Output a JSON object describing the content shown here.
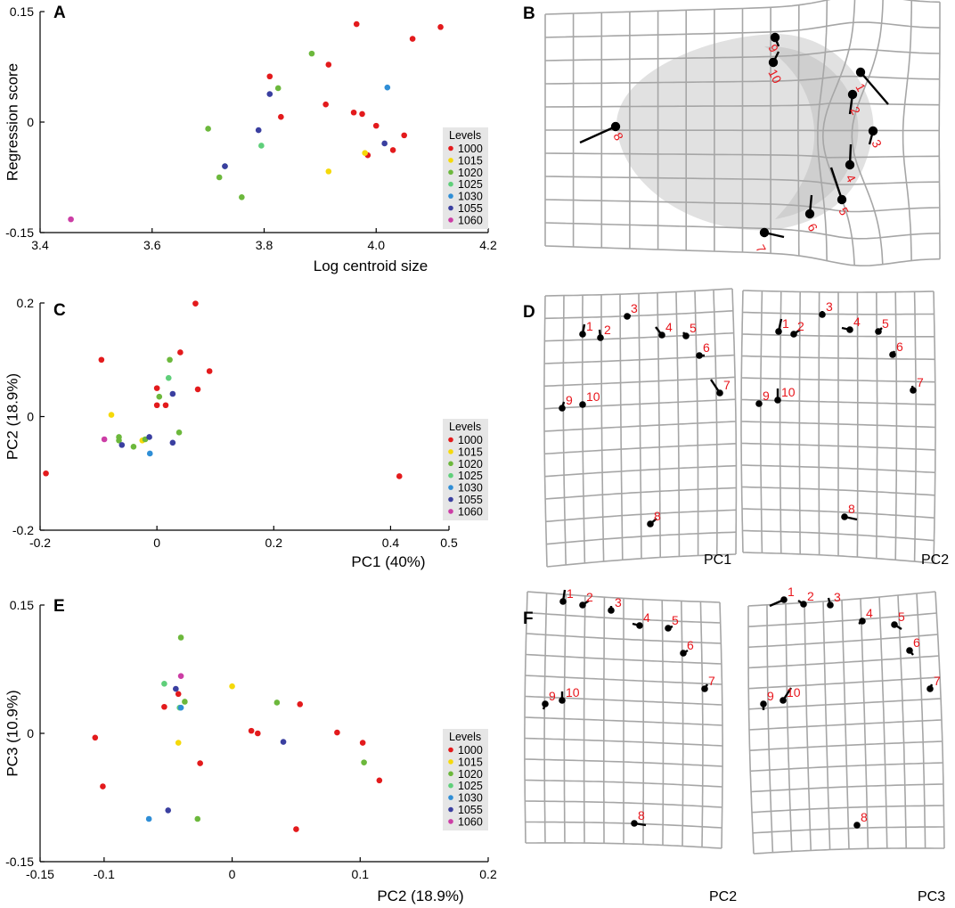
{
  "colors": {
    "1000": "#e31a1c",
    "1015": "#f5d90a",
    "1020": "#6cb83c",
    "1025": "#5fcf7a",
    "1030": "#2f8ed6",
    "1055": "#3a3fa0",
    "1060": "#cc3da5"
  },
  "legend": {
    "title": "Levels",
    "levels": [
      "1000",
      "1015",
      "1020",
      "1025",
      "1030",
      "1055",
      "1060"
    ]
  },
  "panel_labels": {
    "A": "A",
    "B": "B",
    "C": "C",
    "D": "D",
    "E": "E",
    "F": "F"
  },
  "chart_data": [
    {
      "id": "A",
      "type": "scatter",
      "xlabel": "Log centroid size",
      "ylabel": "Regression score",
      "xlim": [
        3.4,
        4.2
      ],
      "ylim": [
        -0.15,
        0.15
      ],
      "xticks": [
        {
          "v": 3.4,
          "t": "3.4"
        },
        {
          "v": 3.6,
          "t": "3.6"
        },
        {
          "v": 3.8,
          "t": "3.8"
        },
        {
          "v": 4.0,
          "t": "4.0"
        },
        {
          "v": 4.2,
          "t": "4.2"
        }
      ],
      "yticks": [
        {
          "v": 0.15,
          "t": "0.15"
        },
        {
          "v": 0,
          "t": "0"
        },
        {
          "v": -0.15,
          "t": "-0.15"
        }
      ],
      "points": [
        [
          3.965,
          0.133,
          "1000"
        ],
        [
          4.115,
          0.129,
          "1000"
        ],
        [
          4.065,
          0.113,
          "1000"
        ],
        [
          3.915,
          0.078,
          "1000"
        ],
        [
          3.81,
          0.062,
          "1000"
        ],
        [
          3.91,
          0.024,
          "1000"
        ],
        [
          3.96,
          0.013,
          "1000"
        ],
        [
          3.83,
          0.007,
          "1000"
        ],
        [
          3.975,
          0.011,
          "1000"
        ],
        [
          4.0,
          -0.005,
          "1000"
        ],
        [
          4.05,
          -0.018,
          "1000"
        ],
        [
          4.03,
          -0.038,
          "1000"
        ],
        [
          3.985,
          -0.045,
          "1000"
        ],
        [
          3.915,
          -0.067,
          "1015"
        ],
        [
          3.98,
          -0.042,
          "1015"
        ],
        [
          3.885,
          0.093,
          "1020"
        ],
        [
          3.825,
          0.046,
          "1020"
        ],
        [
          3.7,
          -0.009,
          "1020"
        ],
        [
          3.72,
          -0.075,
          "1020"
        ],
        [
          3.76,
          -0.102,
          "1020"
        ],
        [
          3.795,
          -0.032,
          "1025"
        ],
        [
          3.73,
          -0.06,
          "1025"
        ],
        [
          4.02,
          0.047,
          "1030"
        ],
        [
          3.81,
          0.038,
          "1055"
        ],
        [
          3.79,
          -0.011,
          "1055"
        ],
        [
          3.73,
          -0.06,
          "1055"
        ],
        [
          4.015,
          -0.029,
          "1055"
        ],
        [
          3.455,
          -0.132,
          "1060"
        ]
      ]
    },
    {
      "id": "C",
      "type": "scatter",
      "xlabel": "PC1 (40%)",
      "ylabel": "PC2 (18.9%)",
      "xlim": [
        -0.2,
        0.5
      ],
      "ylim": [
        -0.2,
        0.2
      ],
      "xticks": [
        {
          "v": -0.2,
          "t": "-0.2"
        },
        {
          "v": 0,
          "t": "0"
        },
        {
          "v": 0.2,
          "t": "0.2"
        },
        {
          "v": 0.4,
          "t": "0.4"
        },
        {
          "v": 0.5,
          "t": "0.5"
        }
      ],
      "yticks": [
        {
          "v": 0.2,
          "t": "0.2"
        },
        {
          "v": 0,
          "t": "0"
        },
        {
          "v": -0.2,
          "t": "-0.2"
        }
      ],
      "points": [
        [
          0.066,
          0.199,
          "1000"
        ],
        [
          -0.095,
          0.1,
          "1000"
        ],
        [
          0.04,
          0.113,
          "1000"
        ],
        [
          0.09,
          0.08,
          "1000"
        ],
        [
          0.07,
          0.048,
          "1000"
        ],
        [
          0.0,
          0.05,
          "1000"
        ],
        [
          0.015,
          0.02,
          "1000"
        ],
        [
          0.0,
          0.02,
          "1000"
        ],
        [
          -0.19,
          -0.1,
          "1000"
        ],
        [
          0.415,
          -0.105,
          "1000"
        ],
        [
          -0.078,
          0.003,
          "1015"
        ],
        [
          -0.025,
          -0.042,
          "1015"
        ],
        [
          0.022,
          0.1,
          "1020"
        ],
        [
          0.004,
          0.035,
          "1020"
        ],
        [
          -0.065,
          -0.036,
          "1020"
        ],
        [
          -0.04,
          -0.053,
          "1020"
        ],
        [
          -0.02,
          -0.04,
          "1020"
        ],
        [
          0.038,
          -0.028,
          "1020"
        ],
        [
          -0.065,
          -0.042,
          "1020"
        ],
        [
          0.02,
          0.068,
          "1025"
        ],
        [
          -0.012,
          -0.065,
          "1030"
        ],
        [
          -0.013,
          -0.036,
          "1055"
        ],
        [
          0.027,
          0.04,
          "1055"
        ],
        [
          0.027,
          -0.046,
          "1055"
        ],
        [
          -0.06,
          -0.05,
          "1055"
        ],
        [
          -0.09,
          -0.04,
          "1060"
        ]
      ]
    },
    {
      "id": "E",
      "type": "scatter",
      "xlabel": "PC2 (18.9%)",
      "ylabel": "PC3 (10.9%)",
      "xlim": [
        -0.15,
        0.2
      ],
      "ylim": [
        -0.15,
        0.15
      ],
      "xticks": [
        {
          "v": -0.15,
          "t": "-0.15"
        },
        {
          "v": -0.1,
          "t": "-0.1"
        },
        {
          "v": 0,
          "t": "0"
        },
        {
          "v": 0.1,
          "t": "0.1"
        },
        {
          "v": 0.2,
          "t": "0.2"
        }
      ],
      "yticks": [
        {
          "v": 0.15,
          "t": "0.15"
        },
        {
          "v": 0,
          "t": "0"
        },
        {
          "v": -0.15,
          "t": "-0.15"
        }
      ],
      "points": [
        [
          -0.107,
          -0.005,
          "1000"
        ],
        [
          -0.101,
          -0.062,
          "1000"
        ],
        [
          -0.053,
          0.031,
          "1000"
        ],
        [
          -0.042,
          0.046,
          "1000"
        ],
        [
          -0.025,
          -0.035,
          "1000"
        ],
        [
          0.015,
          0.003,
          "1000"
        ],
        [
          0.02,
          0.0,
          "1000"
        ],
        [
          0.053,
          0.034,
          "1000"
        ],
        [
          0.082,
          0.001,
          "1000"
        ],
        [
          0.102,
          -0.011,
          "1000"
        ],
        [
          0.115,
          -0.055,
          "1000"
        ],
        [
          0.05,
          -0.112,
          "1000"
        ],
        [
          0.0,
          0.055,
          "1015"
        ],
        [
          -0.042,
          -0.011,
          "1015"
        ],
        [
          -0.04,
          0.112,
          "1020"
        ],
        [
          -0.037,
          0.037,
          "1020"
        ],
        [
          0.035,
          0.036,
          "1020"
        ],
        [
          0.103,
          -0.034,
          "1020"
        ],
        [
          -0.027,
          -0.1,
          "1020"
        ],
        [
          -0.053,
          0.058,
          "1025"
        ],
        [
          -0.041,
          0.03,
          "1025"
        ],
        [
          -0.065,
          -0.1,
          "1030"
        ],
        [
          -0.04,
          0.03,
          "1030"
        ],
        [
          -0.044,
          0.052,
          "1055"
        ],
        [
          0.04,
          -0.01,
          "1055"
        ],
        [
          -0.05,
          -0.09,
          "1055"
        ],
        [
          -0.04,
          0.067,
          "1060"
        ]
      ]
    }
  ],
  "deformation": {
    "B": {
      "labels": [
        "1",
        "2",
        "3",
        "4",
        "5",
        "6",
        "7",
        "8",
        "9",
        "10"
      ]
    },
    "D": {
      "captions": [
        "PC1",
        "PC2"
      ]
    },
    "F": {
      "captions": [
        "PC2",
        "PC3"
      ]
    }
  }
}
